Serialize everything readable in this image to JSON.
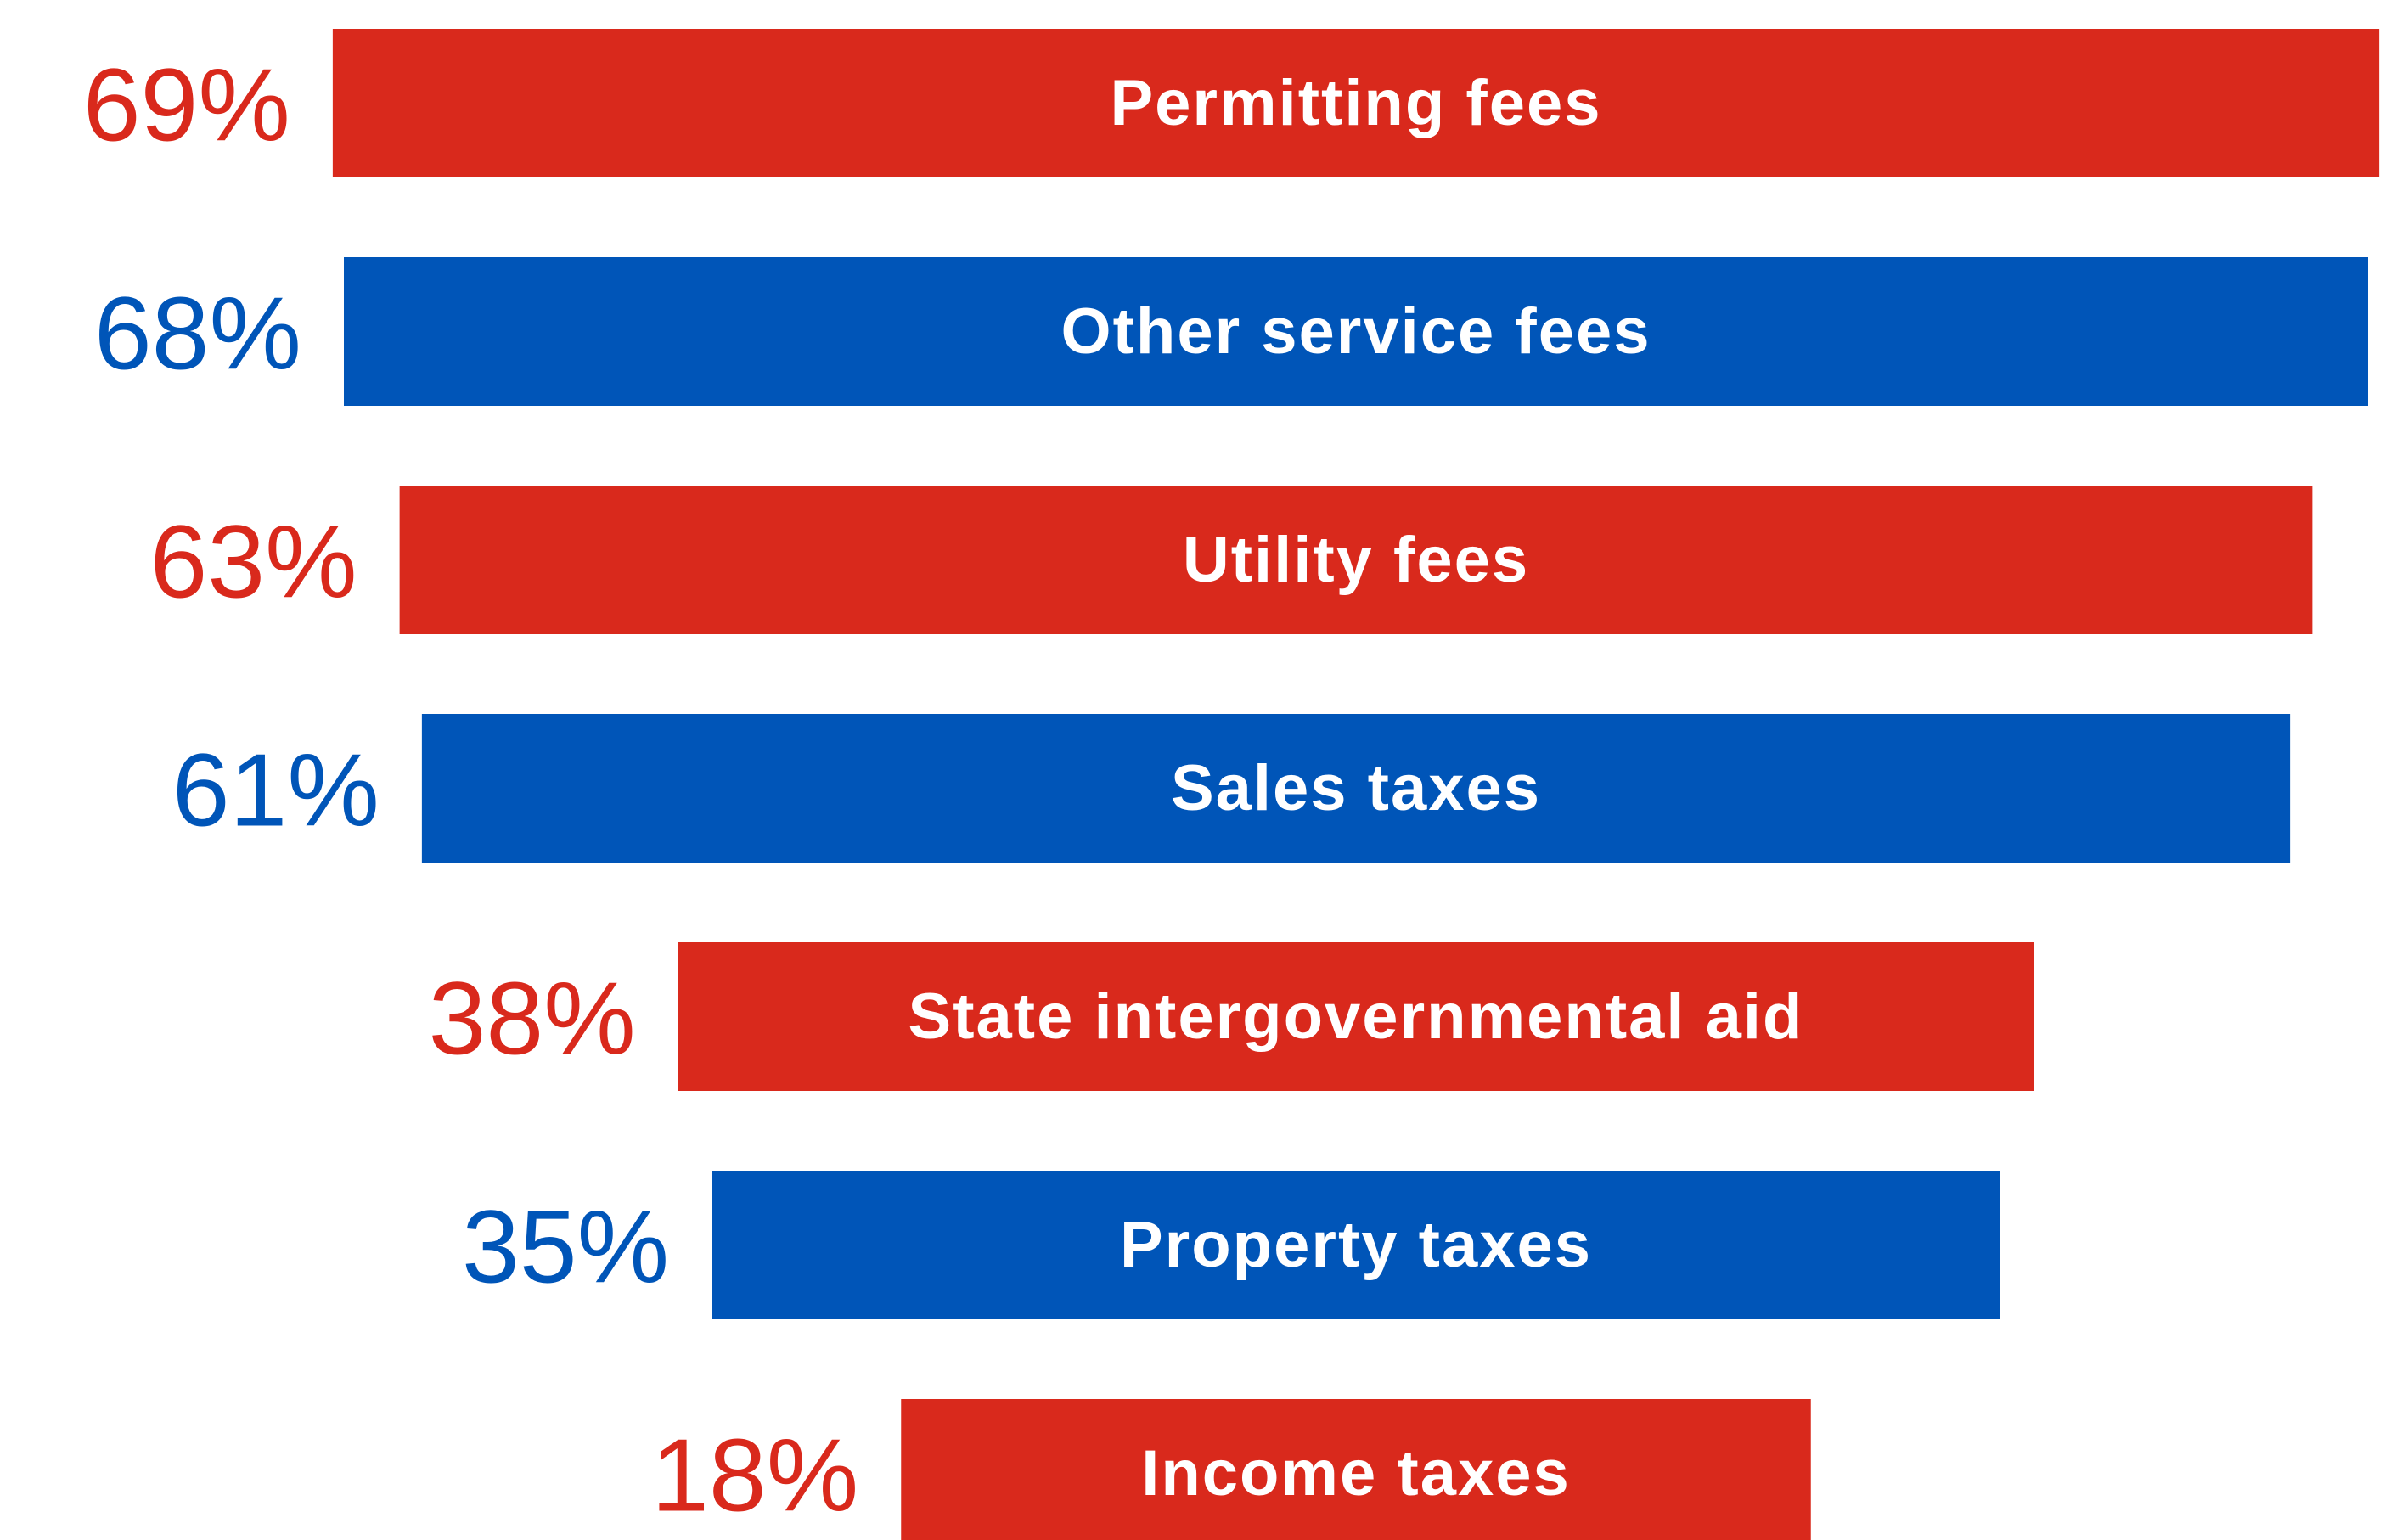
{
  "chart_data": {
    "type": "bar",
    "categories": [
      "Permitting fees",
      "Other service fees",
      "Utility fees",
      "Sales taxes",
      "State intergovernmental aid",
      "Property taxes",
      "Income taxes"
    ],
    "values": [
      69,
      68,
      63,
      61,
      38,
      35,
      18
    ],
    "value_labels": [
      "69%",
      "68%",
      "63%",
      "61%",
      "38%",
      "35%",
      "18%"
    ],
    "colors": [
      "#d9291c",
      "#0055b8",
      "#d9291c",
      "#0055b8",
      "#d9291c",
      "#0055b8",
      "#d9291c"
    ]
  }
}
